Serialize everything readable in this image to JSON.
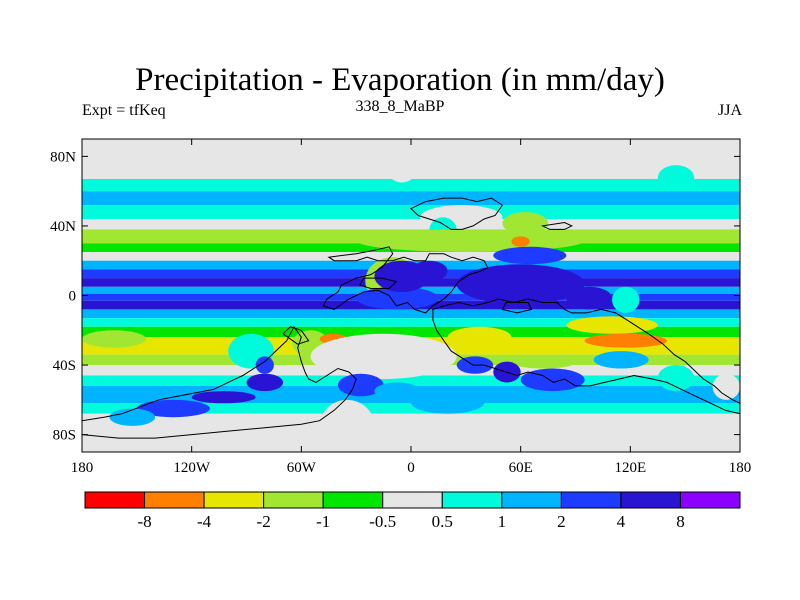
{
  "chart_data": {
    "type": "heatmap",
    "title": "Precipitation - Evaporation (in mm/day)",
    "subtitle_left": "Expt = tfKeq",
    "subtitle_center": "338_8_MaBP",
    "subtitle_right": "JJA",
    "xlim": [
      -180,
      180
    ],
    "ylim": [
      -90,
      90
    ],
    "x_ticks": [
      {
        "value": -180,
        "label": "180"
      },
      {
        "value": -120,
        "label": "120W"
      },
      {
        "value": -60,
        "label": "60W"
      },
      {
        "value": 0,
        "label": "0"
      },
      {
        "value": 60,
        "label": "60E"
      },
      {
        "value": 120,
        "label": "120E"
      },
      {
        "value": 180,
        "label": "180"
      }
    ],
    "y_ticks": [
      {
        "value": 80,
        "label": "80N"
      },
      {
        "value": 40,
        "label": "40N"
      },
      {
        "value": 0,
        "label": "0"
      },
      {
        "value": -40,
        "label": "40S"
      },
      {
        "value": -80,
        "label": "80S"
      }
    ],
    "colorbar": {
      "colors": [
        "#ff0000",
        "#ff7f00",
        "#e6e600",
        "#a0e632",
        "#00e600",
        "#e6e6e6",
        "#00fadc",
        "#00b4ff",
        "#1e3cff",
        "#2814d2",
        "#8c00ff"
      ],
      "labels": [
        "-8",
        "-4",
        "-2",
        "-1",
        "-0.5",
        "0.5",
        "1",
        "2",
        "4",
        "8"
      ]
    },
    "zonal_bands": [
      {
        "lat_max": 90,
        "lat_min": 67,
        "level": 5
      },
      {
        "lat_max": 67,
        "lat_min": 60,
        "level": 6
      },
      {
        "lat_max": 60,
        "lat_min": 52,
        "level": 7
      },
      {
        "lat_max": 52,
        "lat_min": 44,
        "level": 6
      },
      {
        "lat_max": 44,
        "lat_min": 38,
        "level": 5
      },
      {
        "lat_max": 38,
        "lat_min": 30,
        "level": 3
      },
      {
        "lat_max": 30,
        "lat_min": 25,
        "level": 4
      },
      {
        "lat_max": 25,
        "lat_min": 20,
        "level": 5
      },
      {
        "lat_max": 20,
        "lat_min": 15,
        "level": 7
      },
      {
        "lat_max": 15,
        "lat_min": 10,
        "level": 8
      },
      {
        "lat_max": 10,
        "lat_min": 5,
        "level": 9
      },
      {
        "lat_max": 5,
        "lat_min": 1,
        "level": 7
      },
      {
        "lat_max": 1,
        "lat_min": -3,
        "level": 8
      },
      {
        "lat_max": -3,
        "lat_min": -8,
        "level": 9
      },
      {
        "lat_max": -8,
        "lat_min": -13,
        "level": 7
      },
      {
        "lat_max": -13,
        "lat_min": -18,
        "level": 6
      },
      {
        "lat_max": -18,
        "lat_min": -24,
        "level": 4
      },
      {
        "lat_max": -24,
        "lat_min": -34,
        "level": 2
      },
      {
        "lat_max": -34,
        "lat_min": -40,
        "level": 3
      },
      {
        "lat_max": -40,
        "lat_min": -46,
        "level": 5
      },
      {
        "lat_max": -46,
        "lat_min": -52,
        "level": 6
      },
      {
        "lat_max": -52,
        "lat_min": -62,
        "level": 7
      },
      {
        "lat_max": -62,
        "lat_min": -68,
        "level": 6
      },
      {
        "lat_max": -68,
        "lat_min": -90,
        "level": 5
      }
    ],
    "patches": [
      {
        "lon": [
          -15,
          5
        ],
        "lat": [
          65,
          90
        ],
        "level": 5
      },
      {
        "lon": [
          5,
          50
        ],
        "lat": [
          38,
          52
        ],
        "level": 5
      },
      {
        "lon": [
          10,
          25
        ],
        "lat": [
          45,
          30
        ],
        "level": 6
      },
      {
        "lon": [
          50,
          75
        ],
        "lat": [
          35,
          48
        ],
        "level": 3
      },
      {
        "lon": [
          -30,
          95
        ],
        "lat": [
          25,
          38
        ],
        "level": 3
      },
      {
        "lon": [
          55,
          65
        ],
        "lat": [
          28,
          34
        ],
        "level": 1
      },
      {
        "lon": [
          -25,
          5
        ],
        "lat": [
          -5,
          22
        ],
        "level": 3
      },
      {
        "lon": [
          -30,
          15
        ],
        "lat": [
          -8,
          5
        ],
        "level": 8
      },
      {
        "lon": [
          -20,
          10
        ],
        "lat": [
          2,
          20
        ],
        "level": 9
      },
      {
        "lon": [
          0,
          20
        ],
        "lat": [
          8,
          20
        ],
        "level": 9
      },
      {
        "lon": [
          25,
          95
        ],
        "lat": [
          -5,
          18
        ],
        "level": 9
      },
      {
        "lon": [
          45,
          85
        ],
        "lat": [
          18,
          28
        ],
        "level": 8
      },
      {
        "lon": [
          85,
          110
        ],
        "lat": [
          -8,
          5
        ],
        "level": 9
      },
      {
        "lon": [
          110,
          125
        ],
        "lat": [
          -10,
          5
        ],
        "level": 6
      },
      {
        "lon": [
          -65,
          -45
        ],
        "lat": [
          -20,
          -35
        ],
        "level": 3
      },
      {
        "lon": [
          -50,
          -35
        ],
        "lat": [
          -22,
          -28
        ],
        "level": 1
      },
      {
        "lon": [
          -55,
          25
        ],
        "lat": [
          -22,
          -48
        ],
        "level": 5
      },
      {
        "lon": [
          20,
          55
        ],
        "lat": [
          -18,
          -30
        ],
        "level": 2
      },
      {
        "lon": [
          55,
          90
        ],
        "lat": [
          -35,
          -42
        ],
        "level": 3
      },
      {
        "lon": [
          85,
          135
        ],
        "lat": [
          -12,
          -22
        ],
        "level": 2
      },
      {
        "lon": [
          95,
          140
        ],
        "lat": [
          -22,
          -30
        ],
        "level": 1
      },
      {
        "lon": [
          25,
          45
        ],
        "lat": [
          -35,
          -45
        ],
        "level": 8
      },
      {
        "lon": [
          45,
          60
        ],
        "lat": [
          -38,
          -50
        ],
        "level": 9
      },
      {
        "lon": [
          60,
          95
        ],
        "lat": [
          -42,
          -55
        ],
        "level": 8
      },
      {
        "lon": [
          100,
          130
        ],
        "lat": [
          -32,
          -42
        ],
        "level": 7
      },
      {
        "lon": [
          135,
          155
        ],
        "lat": [
          -40,
          -55
        ],
        "level": 6
      },
      {
        "lon": [
          -100,
          -75
        ],
        "lat": [
          -22,
          -42
        ],
        "level": 6
      },
      {
        "lon": [
          -85,
          -75
        ],
        "lat": [
          -35,
          -45
        ],
        "level": 8
      },
      {
        "lon": [
          -90,
          -70
        ],
        "lat": [
          -45,
          -55
        ],
        "level": 9
      },
      {
        "lon": [
          -120,
          -85
        ],
        "lat": [
          -55,
          -62
        ],
        "level": 9
      },
      {
        "lon": [
          -150,
          -110
        ],
        "lat": [
          -60,
          -70
        ],
        "level": 8
      },
      {
        "lon": [
          -165,
          -140
        ],
        "lat": [
          -65,
          -75
        ],
        "level": 7
      },
      {
        "lon": [
          -40,
          -15
        ],
        "lat": [
          -45,
          -58
        ],
        "level": 8
      },
      {
        "lon": [
          -20,
          5
        ],
        "lat": [
          -50,
          -60
        ],
        "level": 7
      },
      {
        "lon": [
          -50,
          -20
        ],
        "lat": [
          -60,
          -90
        ],
        "level": 5
      },
      {
        "lon": [
          0,
          40
        ],
        "lat": [
          -55,
          -68
        ],
        "level": 7
      },
      {
        "lon": [
          165,
          180
        ],
        "lat": [
          -45,
          -60
        ],
        "level": 5
      },
      {
        "lon": [
          -180,
          -145
        ],
        "lat": [
          -20,
          -30
        ],
        "level": 3
      },
      {
        "lon": [
          135,
          155
        ],
        "lat": [
          60,
          75
        ],
        "level": 6
      }
    ],
    "landmasses": [
      [
        [
          -45,
          22
        ],
        [
          -38,
          23
        ],
        [
          -30,
          24
        ],
        [
          -20,
          26
        ],
        [
          -12,
          28
        ],
        [
          -10,
          24
        ],
        [
          -16,
          16
        ],
        [
          -22,
          12
        ],
        [
          -30,
          10
        ],
        [
          -38,
          6
        ],
        [
          -40,
          2
        ],
        [
          -46,
          -2
        ],
        [
          -48,
          -6
        ],
        [
          -42,
          -8
        ],
        [
          -34,
          -2
        ],
        [
          -26,
          2
        ],
        [
          -18,
          3
        ],
        [
          -12,
          0
        ],
        [
          -8,
          -6
        ],
        [
          -2,
          -4
        ],
        [
          2,
          -8
        ],
        [
          8,
          -10
        ],
        [
          12,
          -6
        ],
        [
          18,
          -2
        ],
        [
          22,
          2
        ],
        [
          26,
          8
        ],
        [
          32,
          12
        ],
        [
          38,
          14
        ],
        [
          42,
          16
        ],
        [
          40,
          20
        ],
        [
          34,
          22
        ],
        [
          28,
          20
        ],
        [
          22,
          22
        ],
        [
          18,
          24
        ],
        [
          10,
          24
        ],
        [
          8,
          20
        ],
        [
          2,
          20
        ],
        [
          -4,
          22
        ],
        [
          -10,
          20
        ],
        [
          -18,
          20
        ],
        [
          -24,
          22
        ],
        [
          -30,
          20
        ],
        [
          -36,
          20
        ],
        [
          -42,
          20
        ]
      ],
      [
        [
          12,
          -8
        ],
        [
          18,
          -6
        ],
        [
          26,
          -4
        ],
        [
          34,
          -6
        ],
        [
          42,
          -4
        ],
        [
          48,
          -2
        ],
        [
          56,
          -4
        ],
        [
          64,
          -2
        ],
        [
          72,
          -4
        ],
        [
          80,
          -4
        ],
        [
          84,
          -8
        ],
        [
          88,
          -10
        ],
        [
          96,
          -10
        ],
        [
          104,
          -8
        ],
        [
          112,
          -10
        ],
        [
          118,
          -14
        ],
        [
          124,
          -18
        ],
        [
          130,
          -22
        ],
        [
          138,
          -28
        ],
        [
          144,
          -34
        ],
        [
          150,
          -38
        ],
        [
          156,
          -44
        ],
        [
          160,
          -48
        ],
        [
          166,
          -52
        ],
        [
          170,
          -56
        ],
        [
          176,
          -60
        ],
        [
          180,
          -62
        ],
        [
          180,
          -68
        ],
        [
          172,
          -66
        ],
        [
          164,
          -62
        ],
        [
          156,
          -58
        ],
        [
          148,
          -54
        ],
        [
          140,
          -50
        ],
        [
          132,
          -48
        ],
        [
          122,
          -46
        ],
        [
          114,
          -48
        ],
        [
          106,
          -50
        ],
        [
          98,
          -52
        ],
        [
          90,
          -52
        ],
        [
          84,
          -48
        ],
        [
          78,
          -50
        ],
        [
          72,
          -46
        ],
        [
          64,
          -44
        ],
        [
          58,
          -46
        ],
        [
          52,
          -44
        ],
        [
          46,
          -42
        ],
        [
          40,
          -40
        ],
        [
          34,
          -40
        ],
        [
          28,
          -36
        ],
        [
          22,
          -32
        ],
        [
          18,
          -26
        ],
        [
          14,
          -20
        ],
        [
          12,
          -14
        ]
      ],
      [
        [
          -64,
          -18
        ],
        [
          -68,
          -26
        ],
        [
          -74,
          -32
        ],
        [
          -80,
          -38
        ],
        [
          -86,
          -42
        ],
        [
          -92,
          -46
        ],
        [
          -100,
          -50
        ],
        [
          -108,
          -54
        ],
        [
          -118,
          -56
        ],
        [
          -128,
          -58
        ],
        [
          -138,
          -60
        ],
        [
          -148,
          -64
        ],
        [
          -158,
          -68
        ],
        [
          -168,
          -70
        ],
        [
          -180,
          -72
        ],
        [
          -180,
          -80
        ],
        [
          -160,
          -82
        ],
        [
          -140,
          -82
        ],
        [
          -120,
          -80
        ],
        [
          -100,
          -78
        ],
        [
          -80,
          -76
        ],
        [
          -60,
          -74
        ],
        [
          -50,
          -72
        ],
        [
          -42,
          -66
        ],
        [
          -36,
          -60
        ],
        [
          -32,
          -54
        ],
        [
          -30,
          -48
        ],
        [
          -34,
          -44
        ],
        [
          -40,
          -42
        ],
        [
          -46,
          -46
        ],
        [
          -52,
          -50
        ],
        [
          -56,
          -48
        ],
        [
          -58,
          -44
        ],
        [
          -60,
          -38
        ],
        [
          -62,
          -30
        ],
        [
          -60,
          -24
        ]
      ],
      [
        [
          0,
          50
        ],
        [
          8,
          54
        ],
        [
          18,
          56
        ],
        [
          28,
          56
        ],
        [
          36,
          54
        ],
        [
          44,
          56
        ],
        [
          50,
          52
        ],
        [
          46,
          46
        ],
        [
          40,
          44
        ],
        [
          34,
          40
        ],
        [
          28,
          38
        ],
        [
          22,
          38
        ],
        [
          16,
          42
        ],
        [
          10,
          44
        ],
        [
          4,
          46
        ]
      ],
      [
        [
          72,
          40
        ],
        [
          84,
          42
        ],
        [
          88,
          40
        ],
        [
          84,
          38
        ],
        [
          76,
          38
        ]
      ],
      [
        [
          -26,
          10
        ],
        [
          -16,
          10
        ],
        [
          -8,
          8
        ],
        [
          -12,
          4
        ],
        [
          -22,
          4
        ],
        [
          -28,
          6
        ]
      ],
      [
        [
          52,
          -4
        ],
        [
          64,
          -4
        ],
        [
          66,
          -8
        ],
        [
          58,
          -10
        ],
        [
          50,
          -8
        ]
      ],
      [
        [
          -70,
          -22
        ],
        [
          -62,
          -28
        ],
        [
          -56,
          -26
        ],
        [
          -60,
          -20
        ],
        [
          -66,
          -18
        ]
      ]
    ]
  }
}
